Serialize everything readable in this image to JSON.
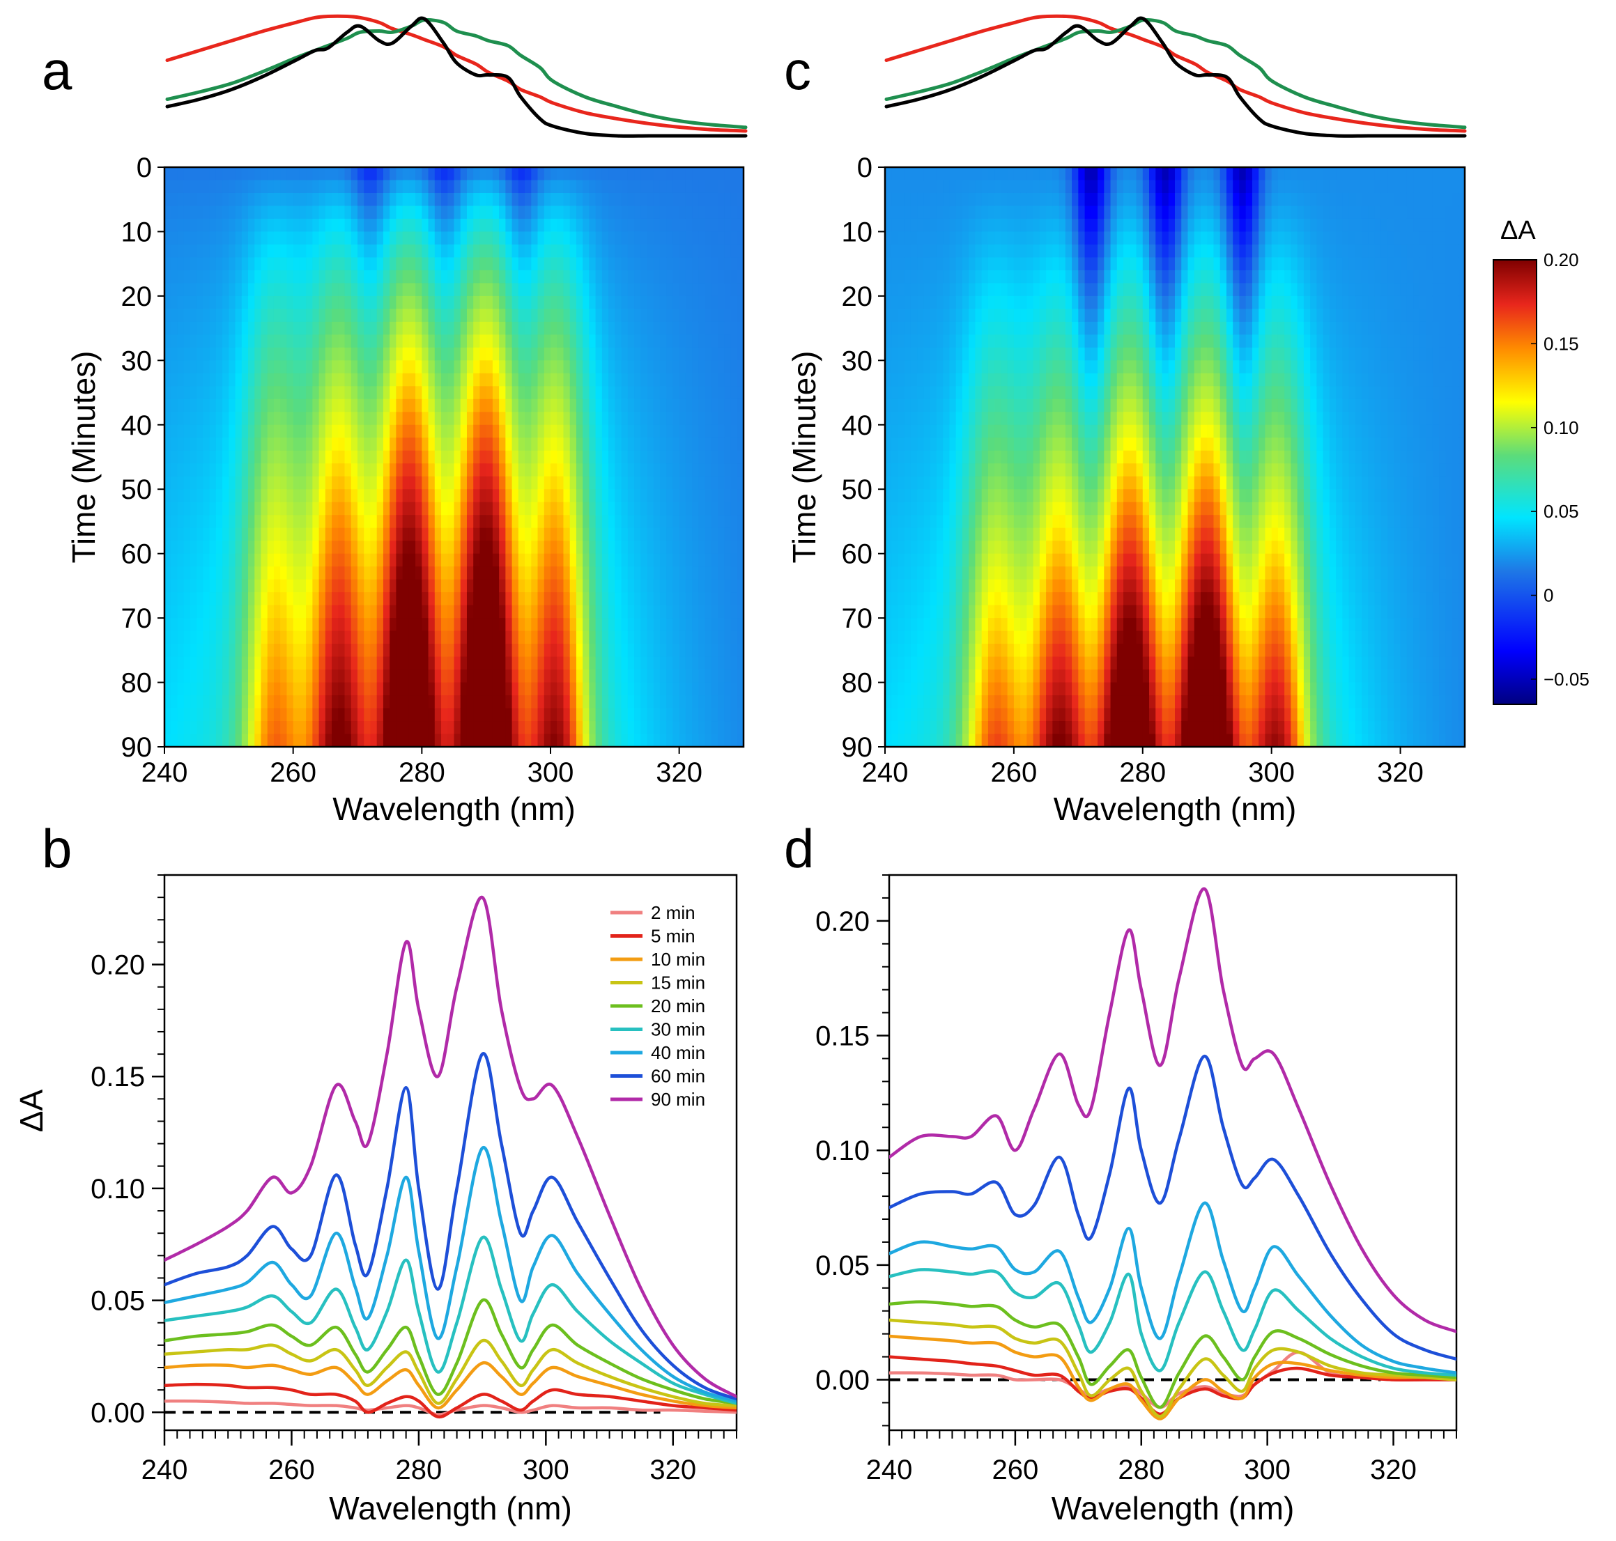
{
  "figure": {
    "panels": {
      "a": {
        "letter": "a"
      },
      "b": {
        "letter": "b"
      },
      "c": {
        "letter": "c"
      },
      "d": {
        "letter": "d"
      }
    }
  },
  "chart_data": [
    {
      "id": "a_top",
      "type": "line",
      "x": [
        240,
        245,
        250,
        255,
        260,
        263,
        265,
        268,
        270,
        273,
        275,
        278,
        280,
        283,
        285,
        288,
        290,
        293,
        295,
        298,
        300,
        305,
        310,
        315,
        320,
        325,
        330
      ],
      "series": [
        {
          "name": "red",
          "color": "#e8261c",
          "values": [
            0.62,
            0.7,
            0.78,
            0.86,
            0.93,
            0.97,
            0.98,
            0.98,
            0.97,
            0.93,
            0.88,
            0.83,
            0.79,
            0.73,
            0.66,
            0.59,
            0.52,
            0.45,
            0.38,
            0.32,
            0.27,
            0.19,
            0.14,
            0.1,
            0.07,
            0.05,
            0.04
          ]
        },
        {
          "name": "green",
          "color": "#1e8f4e",
          "values": [
            0.3,
            0.36,
            0.43,
            0.53,
            0.64,
            0.7,
            0.74,
            0.8,
            0.85,
            0.86,
            0.85,
            0.9,
            0.95,
            0.93,
            0.86,
            0.82,
            0.78,
            0.74,
            0.66,
            0.56,
            0.45,
            0.32,
            0.24,
            0.17,
            0.12,
            0.09,
            0.07
          ]
        },
        {
          "name": "black",
          "color": "#000000",
          "values": [
            0.24,
            0.3,
            0.38,
            0.49,
            0.62,
            0.7,
            0.72,
            0.85,
            0.9,
            0.78,
            0.76,
            0.9,
            0.96,
            0.76,
            0.6,
            0.5,
            0.5,
            0.48,
            0.32,
            0.14,
            0.08,
            0.02,
            0.0,
            0.0,
            0.0,
            0.0,
            0.0
          ]
        }
      ]
    },
    {
      "id": "a",
      "type": "heatmap",
      "title": "",
      "xlabel": "Wavelength (nm)",
      "ylabel": "Time (Minutes)",
      "xlim": [
        240,
        330
      ],
      "ylim": [
        0,
        90
      ],
      "xticks": [
        240,
        260,
        280,
        300,
        320
      ],
      "yticks": [
        0,
        10,
        20,
        30,
        40,
        50,
        60,
        70,
        80,
        90
      ],
      "y_inverted": true,
      "peaks_nm": [
        257,
        267,
        278,
        290,
        301
      ],
      "peak_amplitudes_dA_at_90min": [
        0.105,
        0.145,
        0.21,
        0.225,
        0.145
      ]
    },
    {
      "id": "b",
      "type": "line",
      "xlabel": "Wavelength (nm)",
      "ylabel": "ΔA",
      "xlim": [
        240,
        330
      ],
      "ylim": [
        -0.008,
        0.24
      ],
      "xticks": [
        240,
        260,
        280,
        300,
        320
      ],
      "yticks": [
        0.0,
        0.05,
        0.1,
        0.15,
        0.2
      ],
      "yticklabels": [
        "0.00",
        "0.05",
        "0.10",
        "0.15",
        "0.20"
      ],
      "baseline": 0,
      "legend_position": "top-right",
      "x": [
        240,
        245,
        250,
        253,
        257,
        260,
        263,
        267,
        270,
        272,
        275,
        278,
        280,
        283,
        286,
        290,
        293,
        296,
        298,
        301,
        305,
        310,
        315,
        320,
        325,
        330
      ],
      "series": [
        {
          "name": "2 min",
          "color": "#f08080",
          "values": [
            0.005,
            0.005,
            0.0045,
            0.004,
            0.004,
            0.0035,
            0.003,
            0.003,
            0.002,
            0.001,
            0.002,
            0.003,
            0.002,
            -0.001,
            0.001,
            0.003,
            0.002,
            0.0,
            0.001,
            0.003,
            0.002,
            0.002,
            0.001,
            0.001,
            0.0005,
            0.0
          ]
        },
        {
          "name": "5 min",
          "color": "#e2231a",
          "values": [
            0.012,
            0.0125,
            0.012,
            0.011,
            0.011,
            0.01,
            0.008,
            0.008,
            0.005,
            0.0,
            0.004,
            0.007,
            0.005,
            -0.002,
            0.002,
            0.008,
            0.005,
            0.001,
            0.005,
            0.01,
            0.008,
            0.007,
            0.005,
            0.003,
            0.002,
            0.001
          ]
        },
        {
          "name": "10 min",
          "color": "#f39c12",
          "values": [
            0.02,
            0.021,
            0.021,
            0.02,
            0.021,
            0.019,
            0.017,
            0.02,
            0.013,
            0.008,
            0.014,
            0.019,
            0.012,
            0.002,
            0.01,
            0.022,
            0.016,
            0.008,
            0.013,
            0.02,
            0.016,
            0.012,
            0.008,
            0.005,
            0.003,
            0.002
          ]
        },
        {
          "name": "15 min",
          "color": "#c8c414",
          "values": [
            0.026,
            0.027,
            0.028,
            0.028,
            0.03,
            0.026,
            0.023,
            0.028,
            0.019,
            0.012,
            0.02,
            0.027,
            0.018,
            0.004,
            0.015,
            0.032,
            0.023,
            0.012,
            0.019,
            0.028,
            0.022,
            0.016,
            0.011,
            0.007,
            0.004,
            0.003
          ]
        },
        {
          "name": "20 min",
          "color": "#6cbf1e",
          "values": [
            0.032,
            0.034,
            0.035,
            0.036,
            0.039,
            0.034,
            0.03,
            0.038,
            0.026,
            0.018,
            0.028,
            0.038,
            0.025,
            0.008,
            0.022,
            0.05,
            0.035,
            0.02,
            0.028,
            0.039,
            0.03,
            0.022,
            0.015,
            0.01,
            0.006,
            0.004
          ]
        },
        {
          "name": "30 min",
          "color": "#27c0c0",
          "values": [
            0.041,
            0.043,
            0.045,
            0.047,
            0.052,
            0.045,
            0.04,
            0.055,
            0.038,
            0.028,
            0.045,
            0.068,
            0.045,
            0.018,
            0.04,
            0.078,
            0.055,
            0.032,
            0.044,
            0.057,
            0.045,
            0.032,
            0.022,
            0.013,
            0.008,
            0.004
          ]
        },
        {
          "name": "40 min",
          "color": "#1ea8e0",
          "values": [
            0.049,
            0.052,
            0.055,
            0.058,
            0.067,
            0.057,
            0.052,
            0.08,
            0.056,
            0.042,
            0.07,
            0.105,
            0.072,
            0.033,
            0.065,
            0.118,
            0.085,
            0.05,
            0.065,
            0.079,
            0.062,
            0.044,
            0.028,
            0.016,
            0.009,
            0.005
          ]
        },
        {
          "name": "60 min",
          "color": "#1d4fd8",
          "values": [
            0.057,
            0.062,
            0.065,
            0.07,
            0.083,
            0.073,
            0.07,
            0.106,
            0.075,
            0.062,
            0.1,
            0.145,
            0.1,
            0.055,
            0.1,
            0.16,
            0.12,
            0.08,
            0.09,
            0.105,
            0.085,
            0.06,
            0.037,
            0.021,
            0.011,
            0.006
          ]
        },
        {
          "name": "90 min",
          "color": "#b12aa8",
          "values": [
            0.068,
            0.075,
            0.083,
            0.09,
            0.105,
            0.098,
            0.11,
            0.146,
            0.13,
            0.12,
            0.16,
            0.21,
            0.18,
            0.15,
            0.19,
            0.23,
            0.18,
            0.145,
            0.14,
            0.146,
            0.123,
            0.088,
            0.055,
            0.03,
            0.015,
            0.007
          ]
        }
      ]
    },
    {
      "id": "c_top",
      "type": "line",
      "x": [
        240,
        245,
        250,
        255,
        260,
        263,
        265,
        268,
        270,
        273,
        275,
        278,
        280,
        283,
        285,
        288,
        290,
        293,
        295,
        298,
        300,
        305,
        310,
        315,
        320,
        325,
        330
      ],
      "series": [
        {
          "name": "red",
          "color": "#e8261c",
          "values": [
            0.62,
            0.7,
            0.78,
            0.86,
            0.93,
            0.97,
            0.98,
            0.98,
            0.97,
            0.93,
            0.88,
            0.83,
            0.79,
            0.73,
            0.66,
            0.59,
            0.52,
            0.45,
            0.38,
            0.32,
            0.27,
            0.19,
            0.14,
            0.1,
            0.07,
            0.05,
            0.04
          ]
        },
        {
          "name": "green",
          "color": "#1e8f4e",
          "values": [
            0.3,
            0.36,
            0.43,
            0.53,
            0.64,
            0.7,
            0.74,
            0.8,
            0.85,
            0.86,
            0.85,
            0.9,
            0.95,
            0.93,
            0.86,
            0.82,
            0.78,
            0.74,
            0.66,
            0.56,
            0.45,
            0.32,
            0.24,
            0.17,
            0.12,
            0.09,
            0.07
          ]
        },
        {
          "name": "black",
          "color": "#000000",
          "values": [
            0.24,
            0.3,
            0.38,
            0.49,
            0.62,
            0.7,
            0.72,
            0.85,
            0.9,
            0.78,
            0.76,
            0.9,
            0.96,
            0.76,
            0.6,
            0.5,
            0.5,
            0.48,
            0.32,
            0.14,
            0.08,
            0.02,
            0.0,
            0.0,
            0.0,
            0.0,
            0.0
          ]
        }
      ]
    },
    {
      "id": "c",
      "type": "heatmap",
      "title": "",
      "xlabel": "Wavelength (nm)",
      "ylabel": "Time (Minutes)",
      "xlim": [
        240,
        330
      ],
      "ylim": [
        0,
        90
      ],
      "xticks": [
        240,
        260,
        280,
        300,
        320
      ],
      "yticks": [
        0,
        10,
        20,
        30,
        40,
        50,
        60,
        70,
        80,
        90
      ],
      "y_inverted": true,
      "peaks_nm": [
        257,
        267,
        278,
        290,
        301
      ],
      "peak_amplitudes_dA_at_90min": [
        0.115,
        0.14,
        0.195,
        0.215,
        0.14
      ],
      "colorbar": {
        "title": "ΔA",
        "range": [
          -0.065,
          0.2
        ],
        "ticks": [
          0.2,
          0.15,
          0.1,
          0.05,
          0,
          -0.05
        ],
        "ticklabels": [
          "0.20",
          "0.15",
          "0.10",
          "0.05",
          "0",
          "−0.05"
        ]
      }
    },
    {
      "id": "d",
      "type": "line",
      "xlabel": "Wavelength (nm)",
      "ylabel": "",
      "xlim": [
        240,
        330
      ],
      "ylim": [
        -0.022,
        0.22
      ],
      "xticks": [
        240,
        260,
        280,
        300,
        320
      ],
      "yticks": [
        0.0,
        0.05,
        0.1,
        0.15,
        0.2
      ],
      "yticklabels": [
        "0.00",
        "0.05",
        "0.10",
        "0.15",
        "0.20"
      ],
      "baseline": 0,
      "x": [
        240,
        245,
        250,
        253,
        257,
        260,
        263,
        267,
        270,
        272,
        275,
        278,
        280,
        283,
        286,
        290,
        293,
        296,
        298,
        301,
        305,
        310,
        315,
        320,
        325,
        330
      ],
      "series": [
        {
          "name": "2 min",
          "color": "#f08080",
          "values": [
            0.003,
            0.003,
            0.0025,
            0.002,
            0.002,
            0.0,
            0.0,
            0.0,
            -0.004,
            -0.007,
            -0.004,
            -0.003,
            -0.006,
            -0.012,
            -0.006,
            -0.003,
            -0.006,
            -0.007,
            -0.002,
            0.004,
            0.012,
            0.003,
            0.001,
            0.0,
            0.0,
            0.0
          ]
        },
        {
          "name": "5 min",
          "color": "#e2231a",
          "values": [
            0.01,
            0.009,
            0.008,
            0.007,
            0.006,
            0.004,
            0.002,
            0.002,
            -0.005,
            -0.008,
            -0.005,
            -0.004,
            -0.008,
            -0.015,
            -0.008,
            -0.004,
            -0.007,
            -0.008,
            -0.002,
            0.003,
            0.005,
            0.002,
            0.001,
            0.0,
            0.0,
            0.0
          ]
        },
        {
          "name": "10 min",
          "color": "#f39c12",
          "values": [
            0.019,
            0.018,
            0.017,
            0.016,
            0.016,
            0.012,
            0.01,
            0.01,
            -0.003,
            -0.009,
            -0.004,
            -0.002,
            -0.009,
            -0.017,
            -0.008,
            0.0,
            -0.005,
            -0.008,
            0.001,
            0.007,
            0.007,
            0.004,
            0.002,
            0.001,
            0.001,
            0.0
          ]
        },
        {
          "name": "15 min",
          "color": "#c8c414",
          "values": [
            0.026,
            0.025,
            0.024,
            0.023,
            0.023,
            0.018,
            0.016,
            0.017,
            0.003,
            -0.007,
            0.0,
            0.005,
            -0.005,
            -0.016,
            -0.004,
            0.009,
            0.002,
            -0.005,
            0.005,
            0.013,
            0.012,
            0.006,
            0.003,
            0.002,
            0.001,
            0.0
          ]
        },
        {
          "name": "20 min",
          "color": "#6cbf1e",
          "values": [
            0.033,
            0.034,
            0.033,
            0.032,
            0.032,
            0.026,
            0.023,
            0.024,
            0.01,
            -0.002,
            0.006,
            0.013,
            0.001,
            -0.012,
            0.003,
            0.019,
            0.01,
            0.0,
            0.01,
            0.021,
            0.018,
            0.011,
            0.006,
            0.003,
            0.002,
            0.001
          ]
        },
        {
          "name": "30 min",
          "color": "#27c0c0",
          "values": [
            0.045,
            0.048,
            0.047,
            0.046,
            0.047,
            0.038,
            0.036,
            0.042,
            0.024,
            0.012,
            0.025,
            0.046,
            0.02,
            0.004,
            0.025,
            0.047,
            0.03,
            0.013,
            0.022,
            0.039,
            0.03,
            0.018,
            0.01,
            0.005,
            0.003,
            0.002
          ]
        },
        {
          "name": "40 min",
          "color": "#1ea8e0",
          "values": [
            0.055,
            0.06,
            0.058,
            0.057,
            0.058,
            0.048,
            0.047,
            0.056,
            0.036,
            0.025,
            0.04,
            0.066,
            0.04,
            0.018,
            0.045,
            0.077,
            0.052,
            0.03,
            0.04,
            0.058,
            0.045,
            0.028,
            0.015,
            0.008,
            0.005,
            0.003
          ]
        },
        {
          "name": "60 min",
          "color": "#1d4fd8",
          "values": [
            0.075,
            0.081,
            0.082,
            0.081,
            0.086,
            0.072,
            0.076,
            0.097,
            0.072,
            0.062,
            0.09,
            0.127,
            0.1,
            0.077,
            0.105,
            0.141,
            0.11,
            0.085,
            0.088,
            0.096,
            0.08,
            0.055,
            0.035,
            0.02,
            0.013,
            0.009
          ]
        },
        {
          "name": "90 min",
          "color": "#b12aa8",
          "values": [
            0.097,
            0.106,
            0.106,
            0.106,
            0.115,
            0.1,
            0.118,
            0.142,
            0.12,
            0.118,
            0.16,
            0.196,
            0.17,
            0.137,
            0.175,
            0.214,
            0.17,
            0.137,
            0.14,
            0.142,
            0.118,
            0.085,
            0.057,
            0.037,
            0.026,
            0.021
          ]
        }
      ]
    }
  ]
}
